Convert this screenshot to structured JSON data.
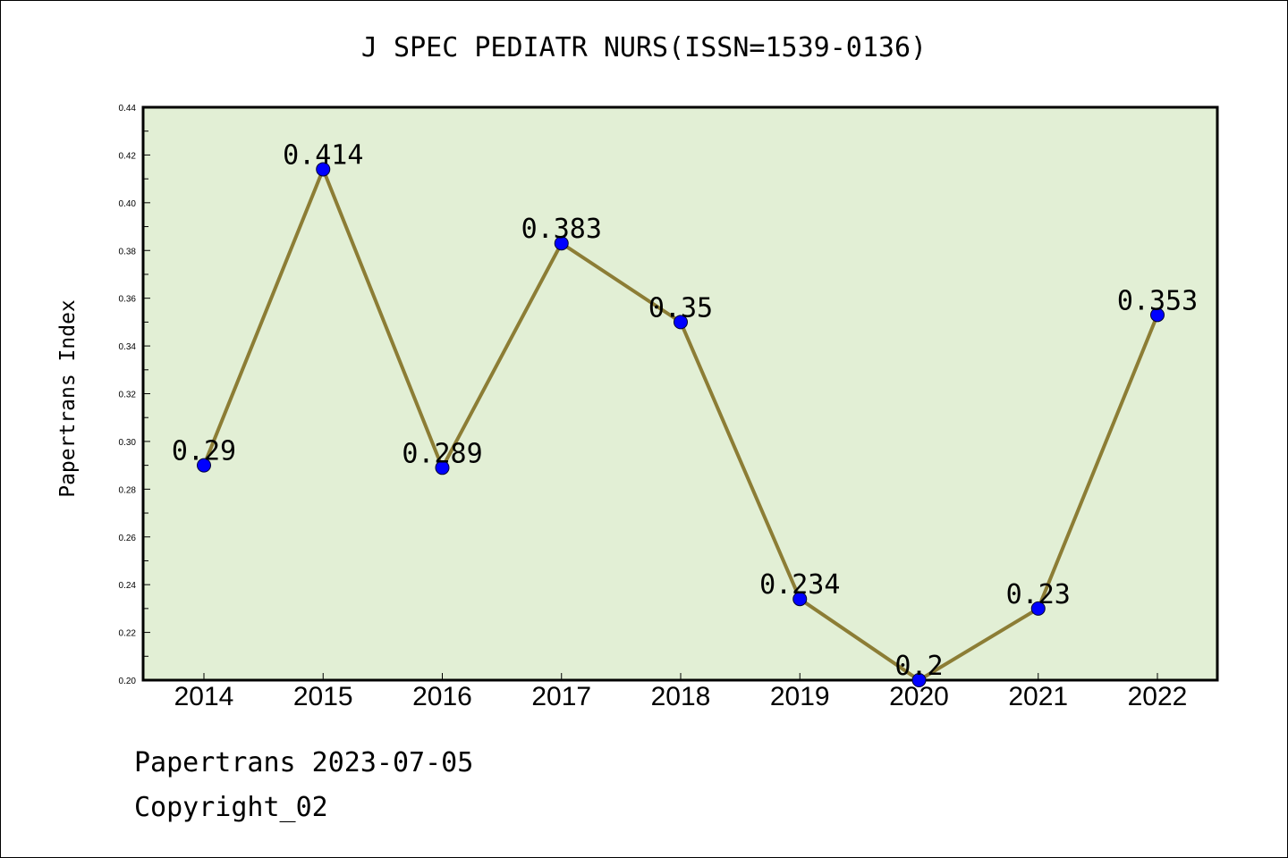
{
  "title": "J SPEC PEDIATR NURS(ISSN=1539-0136)",
  "footer": {
    "line1": "Papertrans 2023-07-05",
    "line2": "Copyright_02"
  },
  "chart_data": {
    "type": "line",
    "title": "J SPEC PEDIATR NURS(ISSN=1539-0136)",
    "xlabel": "",
    "ylabel": "Papertrans Index",
    "categories": [
      "2014",
      "2015",
      "2016",
      "2017",
      "2018",
      "2019",
      "2020",
      "2021",
      "2022"
    ],
    "values": [
      0.29,
      0.414,
      0.289,
      0.383,
      0.35,
      0.234,
      0.2,
      0.23,
      0.353
    ],
    "value_labels": [
      "0.29",
      "0.414",
      "0.289",
      "0.383",
      "0.35",
      "0.234",
      "0.2",
      "0.23",
      "0.353"
    ],
    "ylim": [
      0.2,
      0.44
    ],
    "yticks": [
      "0.20",
      "0.22",
      "0.24",
      "0.26",
      "0.28",
      "0.30",
      "0.32",
      "0.34",
      "0.36",
      "0.38",
      "0.40",
      "0.42",
      "0.44"
    ],
    "grid": false,
    "colors": {
      "plot_background": "#e2efd5",
      "line": "#8c7d35",
      "marker": "#0000ff"
    }
  }
}
